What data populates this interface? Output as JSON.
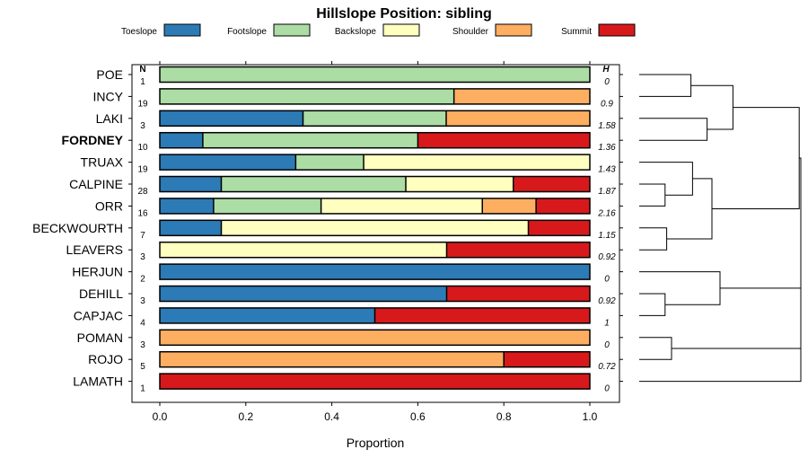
{
  "chart_data": {
    "type": "bar",
    "stacked": true,
    "orientation": "horizontal",
    "title": "Hillslope Position: sibling",
    "xlabel": "Proportion",
    "xlim": [
      0,
      1
    ],
    "xticks": [
      "0.0",
      "0.2",
      "0.4",
      "0.6",
      "0.8",
      "1.0"
    ],
    "n_header": "N",
    "h_header": "H",
    "legend_position": "top",
    "highlight_category": "FORDNEY",
    "categories": [
      "POE",
      "INCY",
      "LAKI",
      "FORDNEY",
      "TRUAX",
      "CALPINE",
      "ORR",
      "BECKWOURTH",
      "LEAVERS",
      "HERJUN",
      "DEHILL",
      "CAPJAC",
      "POMAN",
      "ROJO",
      "LAMATH"
    ],
    "n": [
      "1",
      "19",
      "3",
      "10",
      "19",
      "28",
      "16",
      "7",
      "3",
      "2",
      "3",
      "4",
      "3",
      "5",
      "1"
    ],
    "h": [
      "0",
      "0.9",
      "1.58",
      "1.36",
      "1.43",
      "1.87",
      "2.16",
      "1.15",
      "0.92",
      "0",
      "0.92",
      "1",
      "0",
      "0.72",
      "0"
    ],
    "series": [
      {
        "name": "Toeslope",
        "color": "#2C7BB6",
        "values": [
          0,
          0,
          0.333,
          0.1,
          0.316,
          0.143,
          0.125,
          0.143,
          0,
          1,
          0.667,
          0.5,
          0,
          0,
          0
        ]
      },
      {
        "name": "Footslope",
        "color": "#ABDDA4",
        "values": [
          1,
          0.684,
          0.333,
          0.5,
          0.158,
          0.429,
          0.25,
          0,
          0,
          0,
          0,
          0,
          0,
          0,
          0
        ]
      },
      {
        "name": "Backslope",
        "color": "#FFFFBF",
        "values": [
          0,
          0,
          0,
          0,
          0.526,
          0.25,
          0.375,
          0.714,
          0.667,
          0,
          0,
          0,
          0,
          0,
          0
        ]
      },
      {
        "name": "Shoulder",
        "color": "#FDAE61",
        "values": [
          0,
          0.316,
          0.333,
          0,
          0,
          0,
          0.125,
          0,
          0,
          0,
          0,
          0,
          1,
          0.8,
          0
        ]
      },
      {
        "name": "Summit",
        "color": "#D7191C",
        "values": [
          0,
          0,
          0,
          0.4,
          0,
          0.179,
          0.125,
          0.143,
          0.333,
          0,
          0.333,
          0.5,
          0,
          0.2,
          1
        ]
      }
    ],
    "dendrogram": {
      "merges": [
        {
          "a": "LAKI",
          "b": "FORDNEY",
          "height": 0.42
        },
        {
          "a": "POE",
          "b": "INCY",
          "height": 0.32
        },
        {
          "a": [
            "POE",
            "INCY"
          ],
          "b": [
            "LAKI",
            "FORDNEY"
          ],
          "height": 0.58
        },
        {
          "a": "CALPINE",
          "b": "ORR",
          "height": 0.16
        },
        {
          "a": "TRUAX",
          "b": [
            "CALPINE",
            "ORR"
          ],
          "height": 0.33
        },
        {
          "a": "BECKWOURTH",
          "b": "LEAVERS",
          "height": 0.17
        },
        {
          "a": [
            "TRUAX",
            "CALPINE",
            "ORR"
          ],
          "b": [
            "BECKWOURTH",
            "LEAVERS"
          ],
          "height": 0.45
        },
        {
          "a": [
            "POE",
            "INCY",
            "LAKI",
            "FORDNEY"
          ],
          "b": [
            "TRUAX",
            "CALPINE",
            "ORR",
            "BECKWOURTH",
            "LEAVERS"
          ],
          "height": 0.99
        },
        {
          "a": "DEHILL",
          "b": "CAPJAC",
          "height": 0.16
        },
        {
          "a": "HERJUN",
          "b": [
            "DEHILL",
            "CAPJAC"
          ],
          "height": 0.5
        },
        {
          "a": "POMAN",
          "b": "ROJO",
          "height": 0.2
        },
        {
          "a": [
            "HERJUN",
            "DEHILL",
            "CAPJAC"
          ],
          "b": [
            "POMAN",
            "ROJO"
          ],
          "height": 1.0
        },
        {
          "a": [
            "HERJUN",
            "DEHILL",
            "CAPJAC",
            "POMAN",
            "ROJO"
          ],
          "b": "LAMATH",
          "height": 1.0
        },
        {
          "a": [
            "POE",
            "INCY",
            "LAKI",
            "FORDNEY",
            "TRUAX",
            "CALPINE",
            "ORR",
            "BECKWOURTH",
            "LEAVERS"
          ],
          "b": [
            "HERJUN",
            "DEHILL",
            "CAPJAC",
            "POMAN",
            "ROJO",
            "LAMATH"
          ],
          "height": 1.0
        }
      ]
    }
  }
}
